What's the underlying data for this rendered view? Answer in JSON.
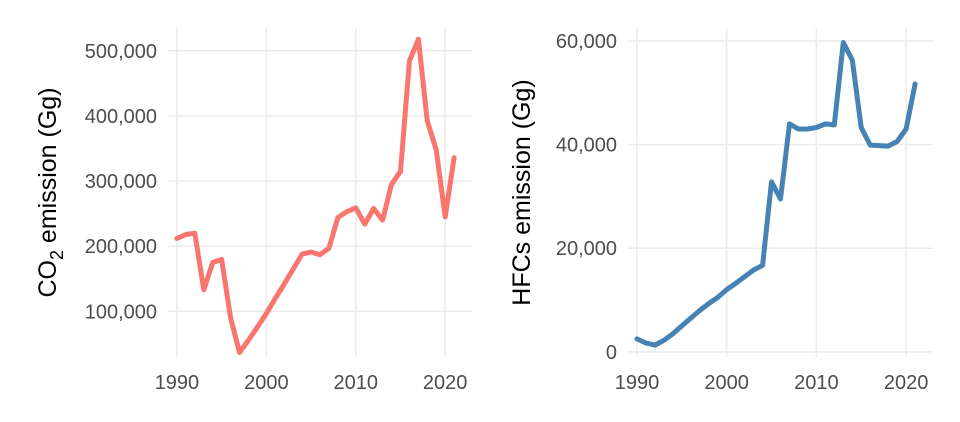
{
  "chart_data": [
    {
      "type": "line",
      "title": "",
      "xlabel": "",
      "ylabel_parts": [
        "CO",
        "2",
        " emission (Gg)"
      ],
      "xlim": [
        1989,
        2023
      ],
      "ylim": [
        30000,
        535000
      ],
      "x_ticks": [
        1990,
        2000,
        2010,
        2020
      ],
      "y_ticks": [
        100000,
        200000,
        300000,
        400000,
        500000
      ],
      "y_tick_labels": [
        "100,000",
        "200,000",
        "300,000",
        "400,000",
        "500,000"
      ],
      "grid": true,
      "series": [
        {
          "color": "#f8766d",
          "x": [
            1990,
            1991,
            1992,
            1993,
            1994,
            1995,
            1996,
            1997,
            1998,
            1999,
            2000,
            2001,
            2002,
            2003,
            2004,
            2005,
            2006,
            2007,
            2008,
            2009,
            2010,
            2011,
            2012,
            2013,
            2014,
            2015,
            2016,
            2017,
            2018,
            2019,
            2020,
            2021
          ],
          "y": [
            212000,
            218000,
            220000,
            133000,
            175000,
            180000,
            90000,
            37000,
            56000,
            76000,
            97000,
            120000,
            142000,
            165000,
            188000,
            191000,
            187000,
            197000,
            244000,
            253000,
            259000,
            234000,
            258000,
            240000,
            295000,
            315000,
            484000,
            518000,
            392000,
            348000,
            245000,
            336000
          ]
        }
      ]
    },
    {
      "type": "line",
      "title": "",
      "xlabel": "",
      "ylabel": "HFCs emission (Gg)",
      "xlim": [
        1989,
        2023
      ],
      "ylim": [
        -1000,
        62500
      ],
      "x_ticks": [
        1990,
        2000,
        2010,
        2020
      ],
      "y_ticks": [
        0,
        20000,
        40000,
        60000
      ],
      "y_tick_labels": [
        "0",
        "20,000",
        "40,000",
        "60,000"
      ],
      "grid": true,
      "series": [
        {
          "color": "#4682b4",
          "x": [
            1990,
            1991,
            1992,
            1993,
            1994,
            1995,
            1996,
            1997,
            1998,
            1999,
            2000,
            2001,
            2002,
            2003,
            2004,
            2005,
            2006,
            2007,
            2008,
            2009,
            2010,
            2011,
            2012,
            2013,
            2014,
            2015,
            2016,
            2017,
            2018,
            2019,
            2020,
            2021
          ],
          "y": [
            2500,
            1700,
            1300,
            2200,
            3500,
            5000,
            6500,
            8000,
            9300,
            10500,
            12000,
            13200,
            14500,
            15800,
            16700,
            32800,
            29500,
            44000,
            43000,
            43000,
            43300,
            44000,
            43800,
            59700,
            56300,
            43300,
            39900,
            39800,
            39700,
            40600,
            43000,
            51700
          ]
        }
      ]
    }
  ]
}
